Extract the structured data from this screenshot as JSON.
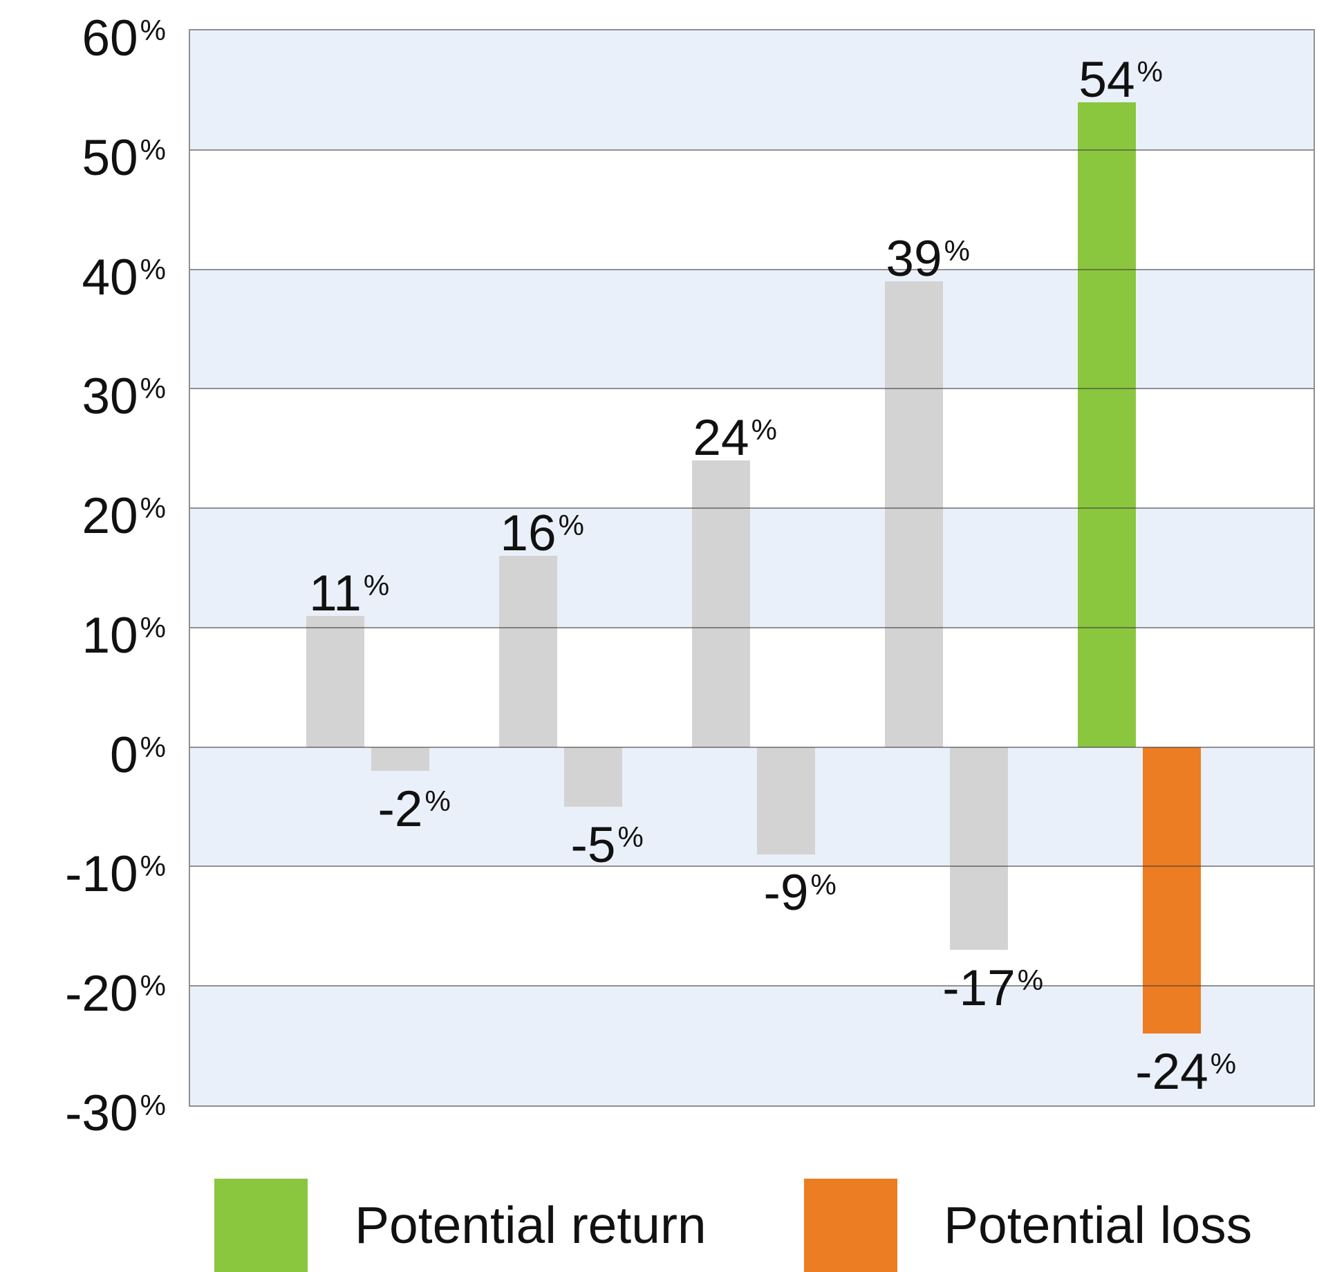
{
  "chart_data": {
    "type": "bar",
    "y_axis": {
      "min": -30,
      "max": 60,
      "step": 10,
      "suffix": "%",
      "ticks": [
        60,
        50,
        40,
        30,
        20,
        10,
        0,
        -10,
        -20,
        -30
      ]
    },
    "grid": "horizontal",
    "plot_background": "alternating horizontal bands, blue band at top",
    "data_label_suffix": "%",
    "series": [
      {
        "name": "Potential return",
        "values": [
          11,
          16,
          24,
          39,
          54
        ],
        "colors": [
          "#d3d3d3",
          "#d3d3d3",
          "#d3d3d3",
          "#d3d3d3",
          "#8bc63f"
        ]
      },
      {
        "name": "Potential loss",
        "values": [
          -2,
          -5,
          -9,
          -17,
          -24
        ],
        "colors": [
          "#d3d3d3",
          "#d3d3d3",
          "#d3d3d3",
          "#d3d3d3",
          "#ed7d23"
        ]
      }
    ],
    "legend": {
      "position": "bottom",
      "entries": [
        {
          "label": "Potential return",
          "color": "#8bc63f"
        },
        {
          "label": "Potential loss",
          "color": "#ed7d23"
        }
      ]
    }
  },
  "colors": {
    "band_blue": "#eaf0f9",
    "band_white": "#ffffff",
    "gridline": "#8f8f8f",
    "bar_gray": "#d3d3d3",
    "return_green": "#8bc63f",
    "loss_orange": "#ed7d23",
    "text": "#111111"
  }
}
